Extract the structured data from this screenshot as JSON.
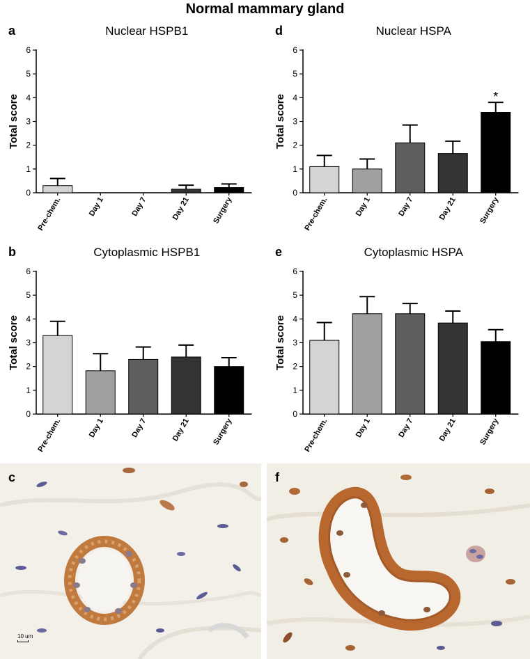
{
  "figure": {
    "title": "Normal mammary gland",
    "photo_c_letter": "c",
    "photo_f_letter": "f",
    "scale_bar_label": "10 um"
  },
  "colors": {
    "pre_chem": "#d4d4d4",
    "day1": "#a0a0a0",
    "day7": "#5e5e5e",
    "day21": "#333333",
    "surgery": "#000000",
    "tissue_bg": "#f2efe8",
    "stain_brown": "#b8682e",
    "nucleus_blue": "#5a5a92"
  },
  "chart_data": [
    {
      "letter": "a",
      "type": "bar",
      "title": "Nuclear HSPB1",
      "ylabel": "Total score",
      "xlabel": "",
      "categories": [
        "Pre-chem.",
        "Day 1",
        "Day 7",
        "Day 21",
        "Surgery"
      ],
      "values": [
        0.3,
        0,
        0,
        0.15,
        0.22
      ],
      "errors": [
        0.3,
        0,
        0,
        0.17,
        0.15
      ],
      "significance": [
        "",
        "",
        "",
        "",
        ""
      ],
      "ylim": [
        0,
        6
      ],
      "yticks": [
        "0",
        "1",
        "2",
        "3",
        "4",
        "5",
        "6"
      ],
      "grid": false
    },
    {
      "letter": "d",
      "type": "bar",
      "title": "Nuclear HSPA",
      "ylabel": "Total score",
      "xlabel": "",
      "categories": [
        "Pre-chem.",
        "Day 1",
        "Day 7",
        "Day 21",
        "Surgery"
      ],
      "values": [
        1.1,
        1.0,
        2.1,
        1.65,
        3.38
      ],
      "errors": [
        0.47,
        0.42,
        0.75,
        0.52,
        0.42
      ],
      "significance": [
        "",
        "",
        "",
        "",
        "*"
      ],
      "ylim": [
        0,
        6
      ],
      "yticks": [
        "0",
        "1",
        "2",
        "3",
        "4",
        "5",
        "6"
      ],
      "grid": false
    },
    {
      "letter": "b",
      "type": "bar",
      "title": "Cytoplasmic HSPB1",
      "ylabel": "Total score",
      "xlabel": "",
      "categories": [
        "Pre-chem.",
        "Day 1",
        "Day 7",
        "Day 21",
        "Surgery"
      ],
      "values": [
        3.3,
        1.82,
        2.3,
        2.4,
        2.0
      ],
      "errors": [
        0.6,
        0.72,
        0.52,
        0.5,
        0.37
      ],
      "significance": [
        "",
        "",
        "",
        "",
        ""
      ],
      "ylim": [
        0,
        6
      ],
      "yticks": [
        "0",
        "1",
        "2",
        "3",
        "4",
        "5",
        "6"
      ],
      "grid": false
    },
    {
      "letter": "e",
      "type": "bar",
      "title": "Cytoplasmic HSPA",
      "ylabel": "Total score",
      "xlabel": "",
      "categories": [
        "Pre-chem.",
        "Day 1",
        "Day 7",
        "Day 21",
        "Surgery"
      ],
      "values": [
        3.1,
        4.22,
        4.22,
        3.83,
        3.05
      ],
      "errors": [
        0.75,
        0.72,
        0.43,
        0.5,
        0.5
      ],
      "significance": [
        "",
        "",
        "",
        "",
        ""
      ],
      "ylim": [
        0,
        6
      ],
      "yticks": [
        "0",
        "1",
        "2",
        "3",
        "4",
        "5",
        "6"
      ],
      "grid": false
    }
  ]
}
